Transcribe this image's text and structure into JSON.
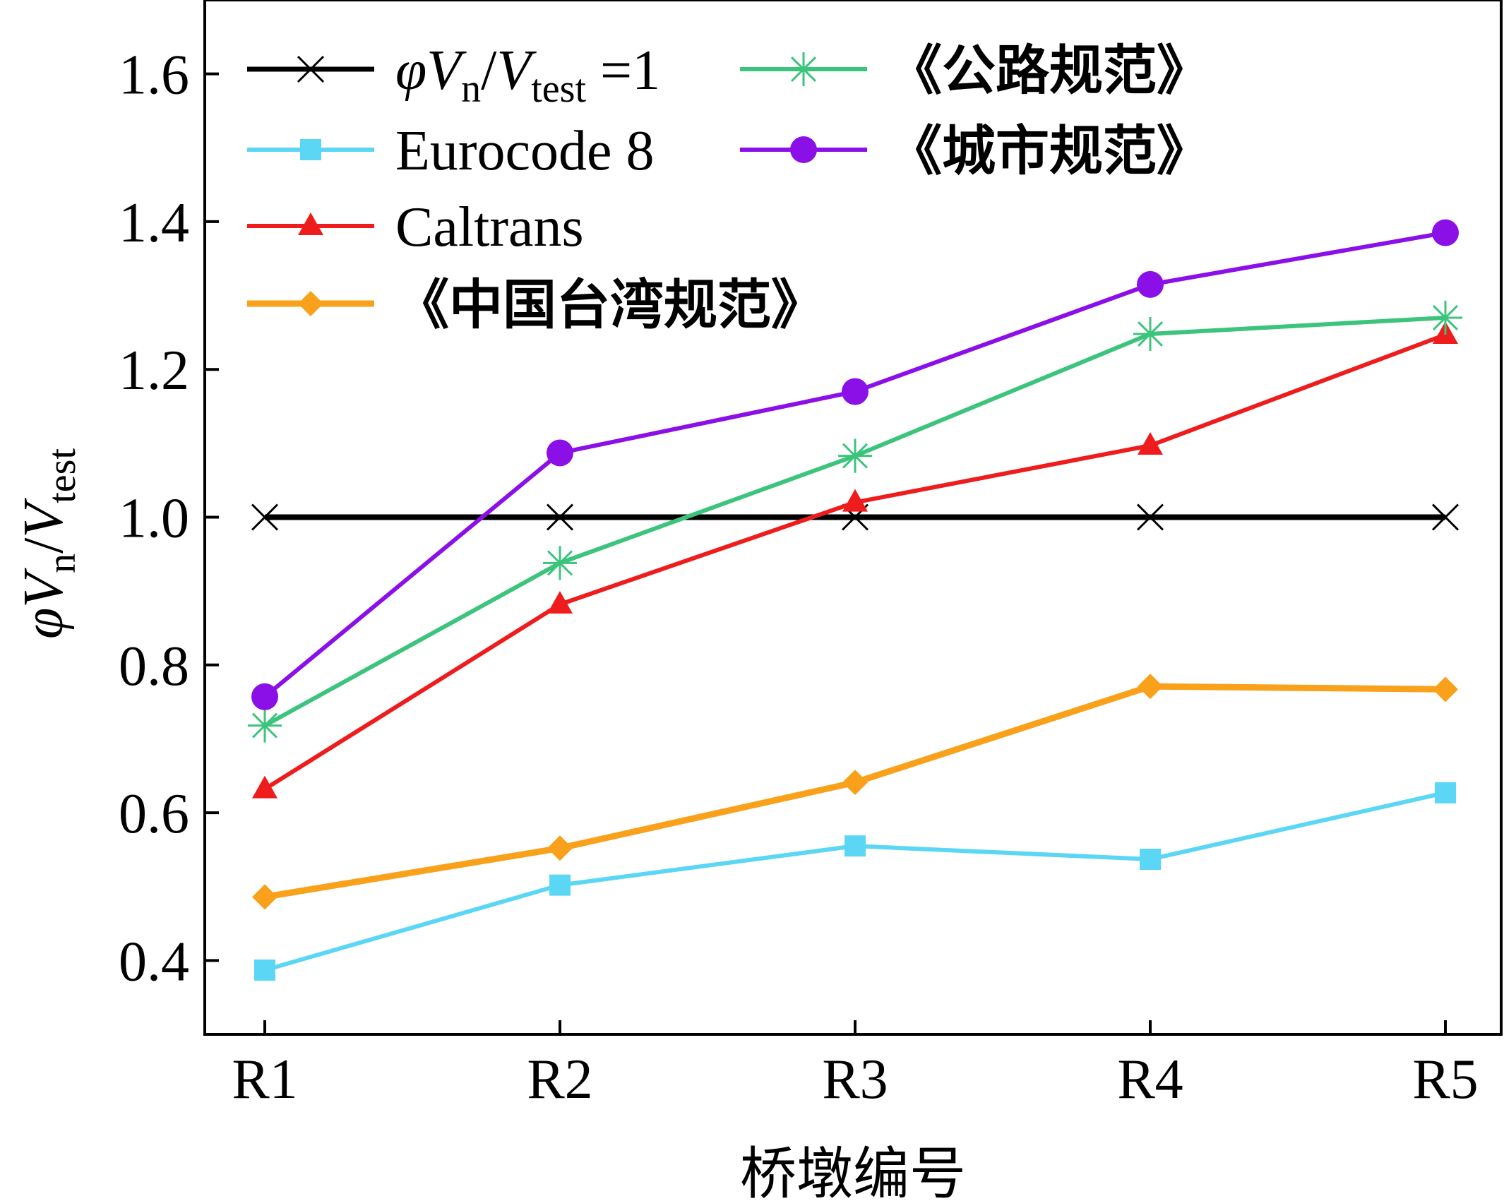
{
  "chart_data": {
    "type": "line",
    "categories": [
      "R1",
      "R2",
      "R3",
      "R4",
      "R5"
    ],
    "xlabel": "桥墩编号",
    "ylabel": {
      "phi": "φ",
      "V1": "V",
      "n": "n",
      "slash": "/",
      "V2": "V",
      "test": "test"
    },
    "ylim": [
      0.3,
      1.7
    ],
    "yticks": [
      0.4,
      0.6,
      0.8,
      1.0,
      1.2,
      1.4,
      1.6
    ],
    "ytick_labels": [
      "0.4",
      "0.6",
      "0.8",
      "1.0",
      "1.2",
      "1.4",
      "1.6"
    ],
    "legend_position": "top-left",
    "grid": false,
    "series": [
      {
        "key": "ref",
        "name": "φVn/Vtest =1",
        "legend_parts": {
          "phi": "φ",
          "V1": "V",
          "n": "n",
          "slash": "/",
          "V2": "V",
          "test": "test",
          "eq": "=1"
        },
        "color": "#000000",
        "marker": "x",
        "values": [
          1.0,
          1.0,
          1.0,
          1.0,
          1.0
        ]
      },
      {
        "key": "ec8",
        "name": "Eurocode 8",
        "color": "#5bd6f5",
        "marker": "square",
        "values": [
          0.387,
          0.502,
          0.555,
          0.537,
          0.627
        ]
      },
      {
        "key": "caltrans",
        "name": "Caltrans",
        "color": "#ee1c1c",
        "marker": "triangle",
        "values": [
          0.632,
          0.882,
          1.02,
          1.097,
          1.247
        ]
      },
      {
        "key": "taiwan",
        "name": "《中国台湾规范》",
        "color": "#f9a11b",
        "marker": "diamond",
        "values": [
          0.486,
          0.552,
          0.641,
          0.771,
          0.767
        ]
      },
      {
        "key": "highway",
        "name": "《公路规范》",
        "color": "#3cc47c",
        "marker": "asterisk",
        "values": [
          0.718,
          0.938,
          1.083,
          1.248,
          1.27
        ]
      },
      {
        "key": "urban",
        "name": "《城市规范》",
        "color": "#8b10e8",
        "marker": "circle",
        "values": [
          0.757,
          1.087,
          1.17,
          1.315,
          1.385
        ]
      }
    ]
  }
}
